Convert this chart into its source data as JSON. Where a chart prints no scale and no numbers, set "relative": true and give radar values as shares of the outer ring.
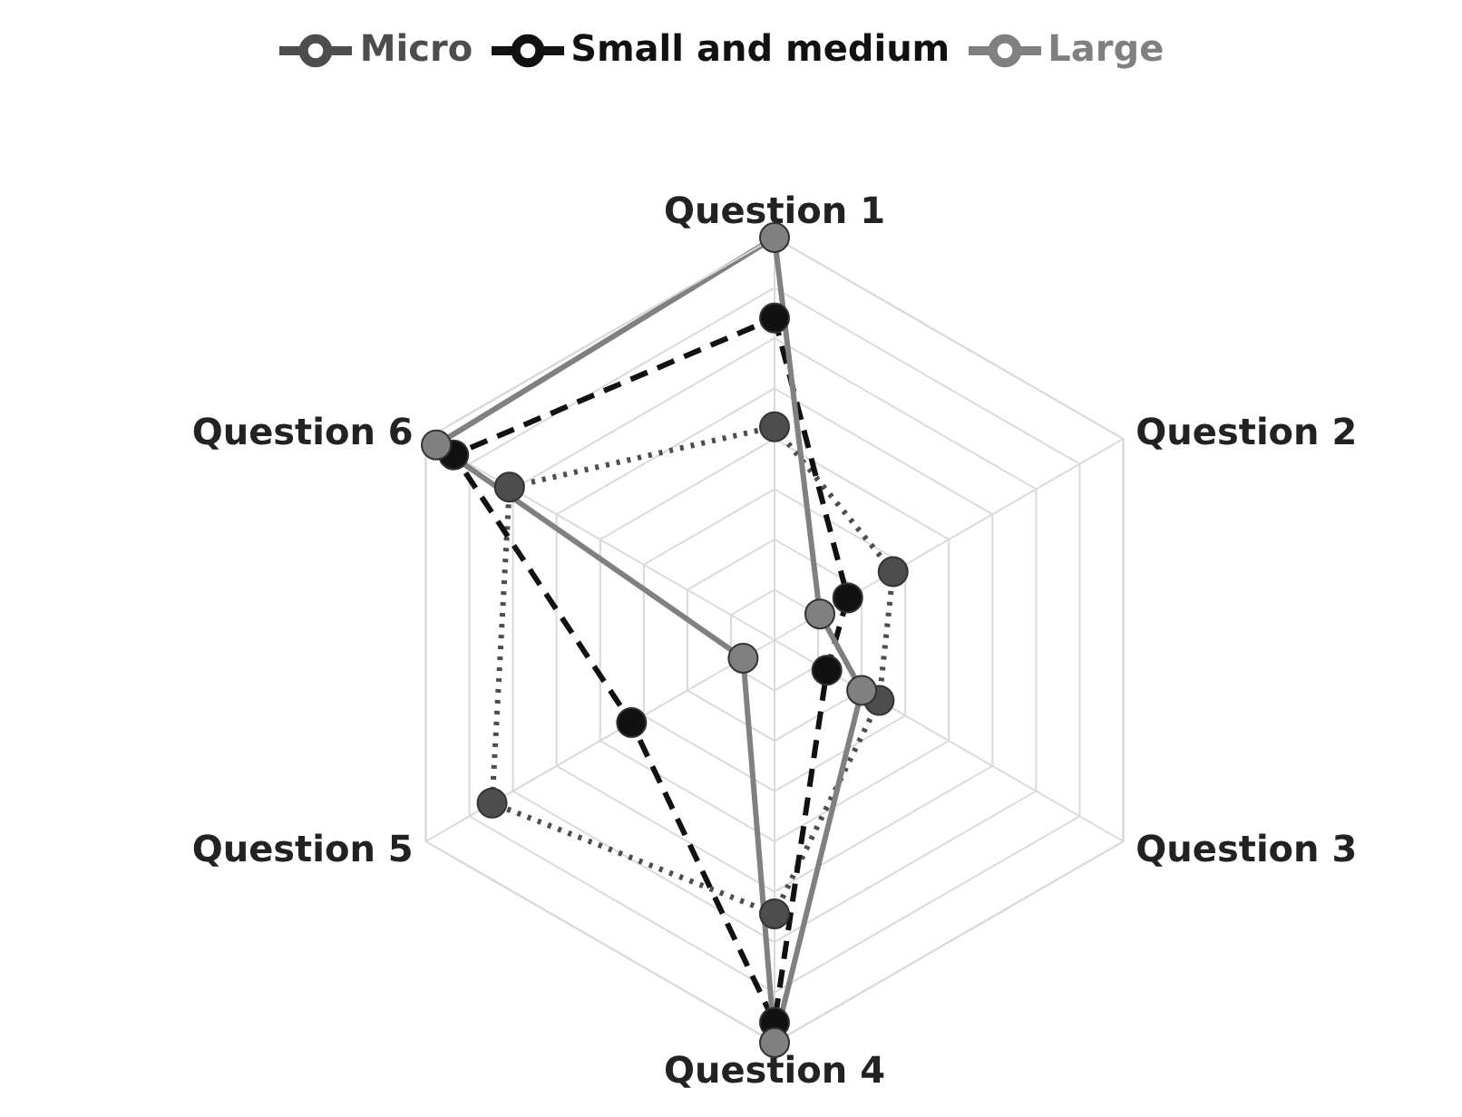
{
  "chart_data": {
    "type": "radar",
    "relative": true,
    "categories": [
      "Question 1",
      "Question 2",
      "Question 3",
      "Question 4",
      "Question 5",
      "Question 6"
    ],
    "series": [
      {
        "name": "Micro",
        "color": "#4d4d4d",
        "line_style": "dotted",
        "values": [
          0.53,
          0.34,
          0.3,
          0.68,
          0.81,
          0.76
        ]
      },
      {
        "name": "Small and medium",
        "color": "#111111",
        "line_style": "dashed",
        "values": [
          0.8,
          0.21,
          0.15,
          0.95,
          0.41,
          0.92
        ]
      },
      {
        "name": "Large",
        "color": "#808080",
        "line_style": "solid",
        "values": [
          1,
          0.13,
          0.25,
          1,
          0.09,
          0.97
        ]
      }
    ],
    "grid": true,
    "legend": "top",
    "marker": "circle"
  }
}
